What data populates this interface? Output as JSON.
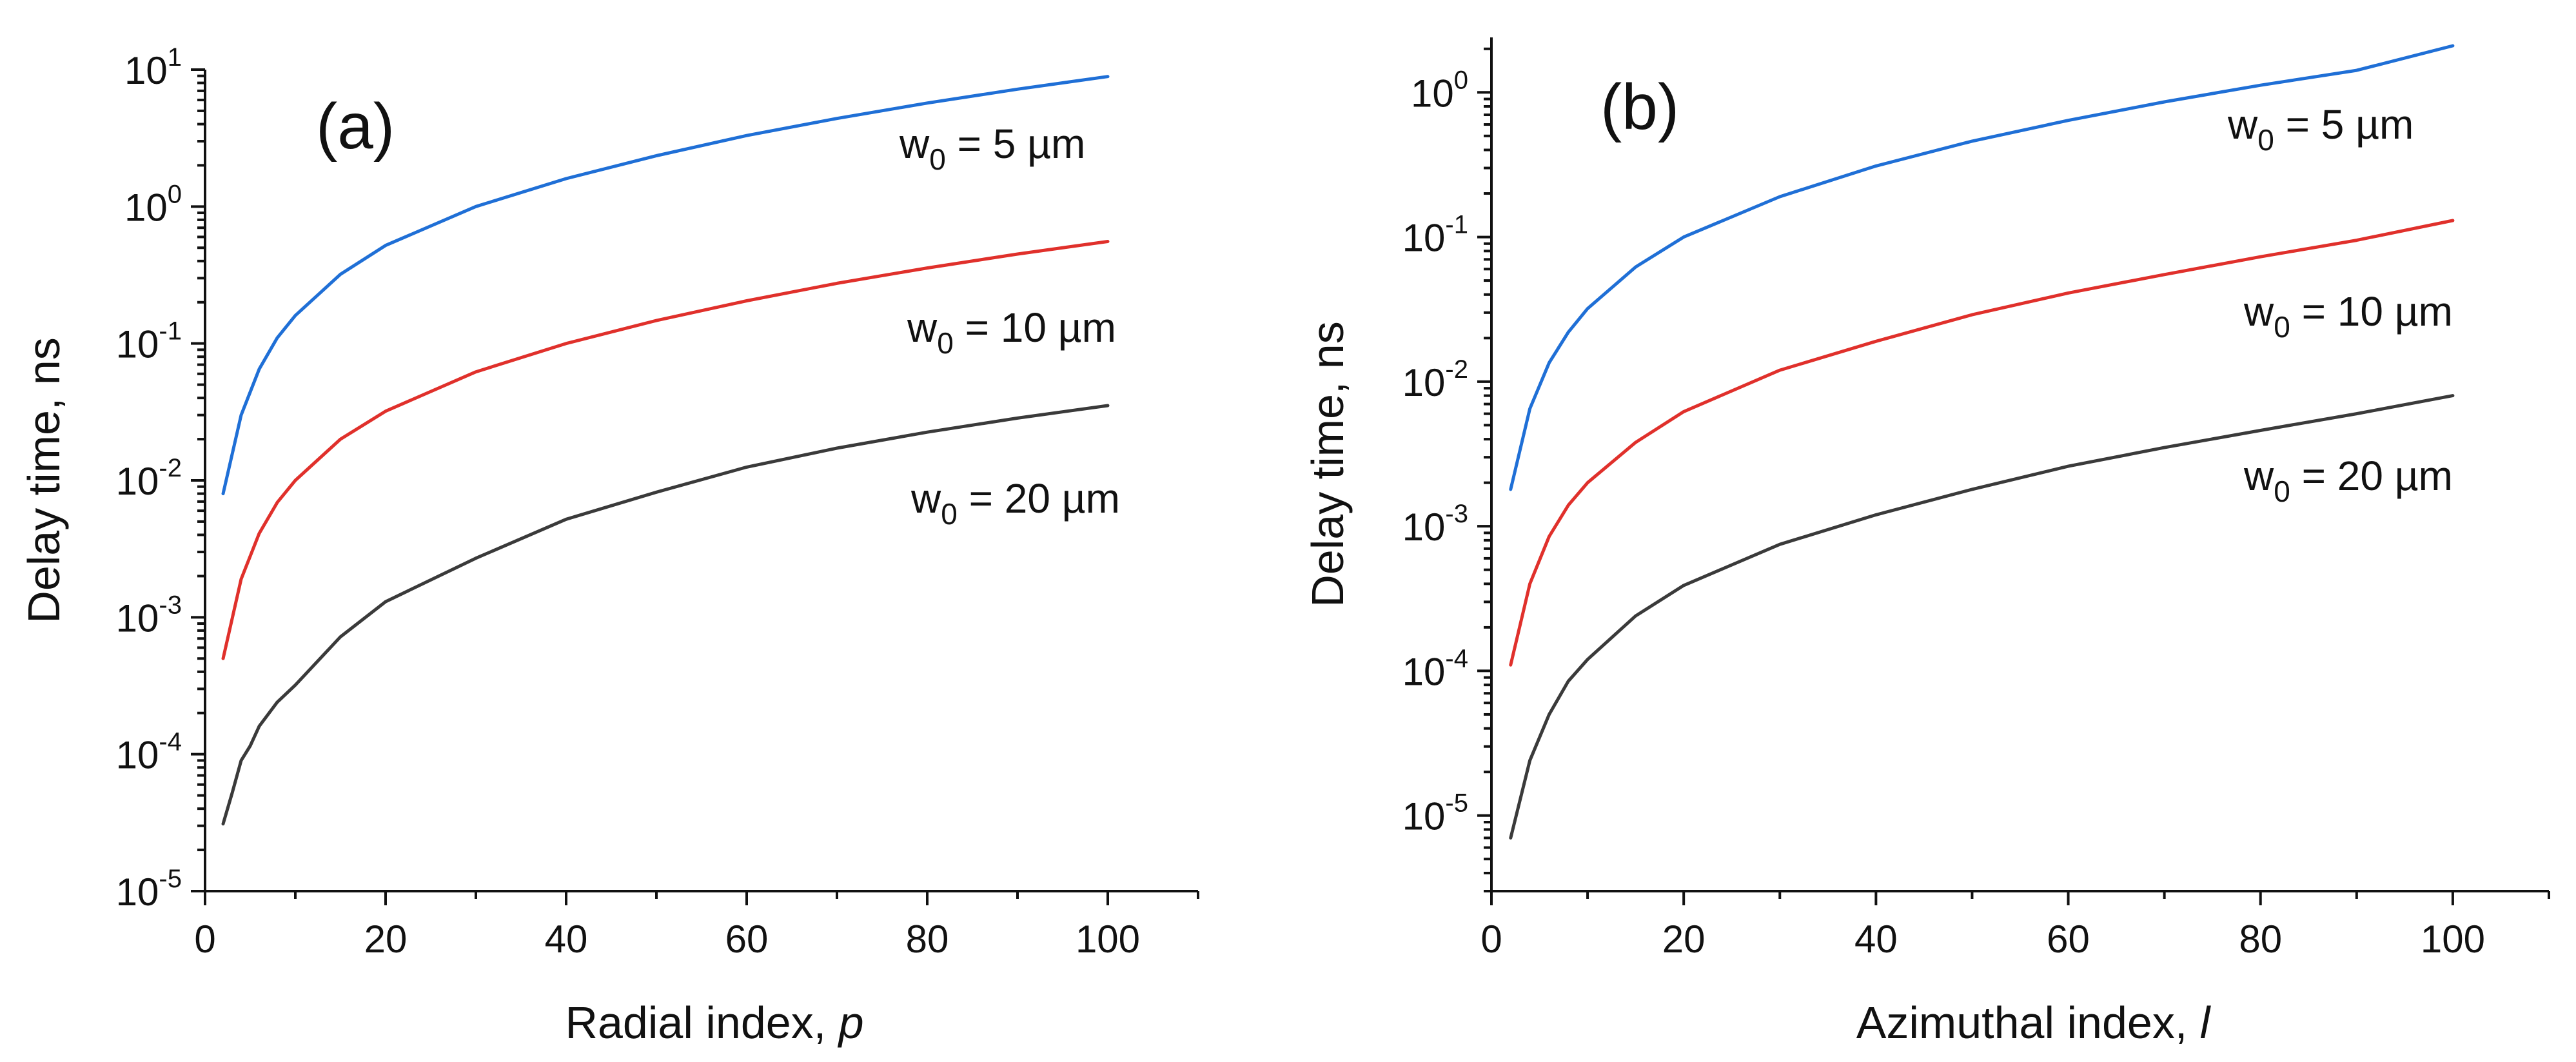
{
  "chart_data": [
    {
      "type": "line",
      "panel_label": "(a)",
      "xlabel": "Radial index, ",
      "xlabel_var": "p",
      "ylabel": "Delay time, ns",
      "yscale": "log",
      "xlim": [
        0,
        110
      ],
      "ylim": [
        1e-05,
        10
      ],
      "x_ticks": [
        0,
        20,
        40,
        60,
        80,
        100
      ],
      "x_minor_step": 10,
      "y_ticks": [
        {
          "base": "10",
          "exp": "-5",
          "value": 1e-05
        },
        {
          "base": "10",
          "exp": "-4",
          "value": 0.0001
        },
        {
          "base": "10",
          "exp": "-3",
          "value": 0.001
        },
        {
          "base": "10",
          "exp": "-2",
          "value": 0.01
        },
        {
          "base": "10",
          "exp": "-1",
          "value": 0.1
        },
        {
          "base": "10",
          "exp": "0",
          "value": 1
        },
        {
          "base": "10",
          "exp": "1",
          "value": 10
        }
      ],
      "series": [
        {
          "name": "w0 = 5 µm",
          "label": {
            "pre": "w",
            "sub": "0",
            "post": " = 5 µm"
          },
          "color": "#1f6fd6",
          "x": [
            2,
            4,
            6,
            8,
            10,
            15,
            20,
            30,
            40,
            50,
            60,
            70,
            80,
            90,
            100
          ],
          "y": [
            0.008,
            0.03,
            0.065,
            0.11,
            0.16,
            0.32,
            0.52,
            1.0,
            1.6,
            2.35,
            3.3,
            4.4,
            5.7,
            7.2,
            8.9
          ]
        },
        {
          "name": "w0 = 10 µm",
          "label": {
            "pre": "w",
            "sub": "0",
            "post": " = 10 µm"
          },
          "color": "#e0302b",
          "x": [
            2,
            4,
            6,
            8,
            10,
            15,
            20,
            30,
            40,
            50,
            60,
            70,
            80,
            90,
            100
          ],
          "y": [
            0.0005,
            0.0019,
            0.0041,
            0.0069,
            0.01,
            0.02,
            0.032,
            0.062,
            0.1,
            0.147,
            0.205,
            0.275,
            0.356,
            0.45,
            0.556
          ]
        },
        {
          "name": "w0 = 20 µm",
          "label": {
            "pre": "w",
            "sub": "0",
            "post": " = 20 µm"
          },
          "color": "#3a3a3a",
          "x": [
            2,
            3,
            4,
            5,
            6,
            8,
            10,
            15,
            20,
            30,
            40,
            50,
            60,
            70,
            80,
            90,
            100
          ],
          "y": [
            3.1e-05,
            5.2e-05,
            9e-05,
            0.000115,
            0.00016,
            0.00024,
            0.00032,
            0.00072,
            0.0013,
            0.0027,
            0.0052,
            0.0082,
            0.0125,
            0.0172,
            0.0225,
            0.0285,
            0.0352
          ]
        }
      ]
    },
    {
      "type": "line",
      "panel_label": "(b)",
      "xlabel": "Azimuthal index, ",
      "xlabel_var": "l",
      "ylabel": "Delay time, ns",
      "yscale": "log",
      "xlim": [
        0,
        110
      ],
      "ylim": [
        3e-06,
        2.4
      ],
      "x_ticks": [
        0,
        20,
        40,
        60,
        80,
        100
      ],
      "x_minor_step": 10,
      "y_ticks": [
        {
          "base": "10",
          "exp": "-5",
          "value": 1e-05
        },
        {
          "base": "10",
          "exp": "-4",
          "value": 0.0001
        },
        {
          "base": "10",
          "exp": "-3",
          "value": 0.001
        },
        {
          "base": "10",
          "exp": "-2",
          "value": 0.01
        },
        {
          "base": "10",
          "exp": "-1",
          "value": 0.1
        },
        {
          "base": "10",
          "exp": "0",
          "value": 1
        }
      ],
      "series": [
        {
          "name": "w0 = 5 µm",
          "label": {
            "pre": "w",
            "sub": "0",
            "post": " = 5 µm"
          },
          "color": "#1f6fd6",
          "x": [
            2,
            4,
            6,
            8,
            10,
            15,
            20,
            30,
            40,
            50,
            60,
            70,
            80,
            90,
            100
          ],
          "y": [
            0.0018,
            0.0065,
            0.0135,
            0.022,
            0.032,
            0.062,
            0.1,
            0.19,
            0.31,
            0.46,
            0.64,
            0.86,
            1.12,
            1.42,
            2.1
          ]
        },
        {
          "name": "w0 = 10 µm",
          "label": {
            "pre": "w",
            "sub": "0",
            "post": " = 10 µm"
          },
          "color": "#e0302b",
          "x": [
            2,
            4,
            6,
            8,
            10,
            15,
            20,
            30,
            40,
            50,
            60,
            70,
            80,
            90,
            100
          ],
          "y": [
            0.00011,
            0.0004,
            0.00085,
            0.0014,
            0.002,
            0.0038,
            0.0062,
            0.012,
            0.019,
            0.029,
            0.041,
            0.055,
            0.073,
            0.095,
            0.13
          ]
        },
        {
          "name": "w0 = 20 µm",
          "label": {
            "pre": "w",
            "sub": "0",
            "post": " = 20 µm"
          },
          "color": "#3a3a3a",
          "x": [
            2,
            4,
            6,
            8,
            10,
            15,
            20,
            30,
            40,
            50,
            60,
            70,
            80,
            90,
            100
          ],
          "y": [
            7e-06,
            2.4e-05,
            5e-05,
            8.5e-05,
            0.00012,
            0.00024,
            0.00039,
            0.00075,
            0.0012,
            0.0018,
            0.0026,
            0.0035,
            0.0046,
            0.006,
            0.008
          ]
        }
      ]
    }
  ]
}
